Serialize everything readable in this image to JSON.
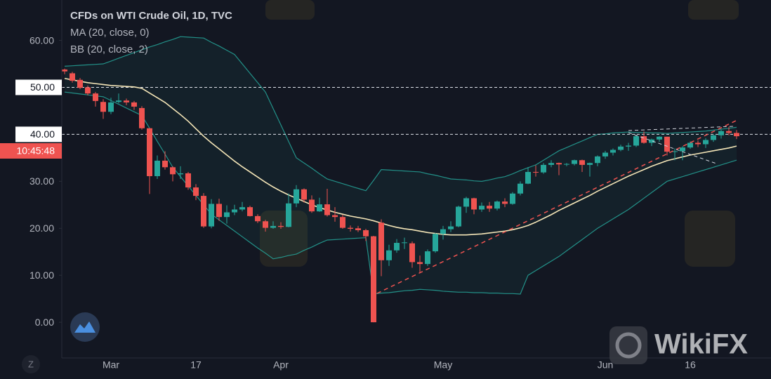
{
  "chart_data": {
    "type": "candlestick",
    "title": "CFDs on WTI Crude Oil, 1D, TVC",
    "up_color": "#26a69a",
    "down_color": "#ef5350",
    "categories": [
      null,
      null,
      null,
      null,
      null,
      null,
      "Mar",
      null,
      null,
      null,
      null,
      null,
      null,
      null,
      null,
      null,
      null,
      "17",
      null,
      null,
      null,
      null,
      null,
      null,
      null,
      null,
      null,
      null,
      "Apr",
      null,
      null,
      null,
      null,
      null,
      null,
      null,
      null,
      null,
      null,
      null,
      null,
      null,
      null,
      null,
      null,
      null,
      null,
      null,
      null,
      "May",
      null,
      null,
      null,
      null,
      null,
      null,
      null,
      null,
      null,
      null,
      null,
      null,
      null,
      null,
      null,
      null,
      null,
      null,
      null,
      null,
      "Jun",
      null,
      null,
      null,
      null,
      null,
      null,
      null,
      null,
      null,
      null,
      "16",
      null,
      null,
      null,
      null,
      null,
      null
    ],
    "open": [
      53.8,
      53.0,
      51.6,
      50.0,
      48.7,
      46.9,
      44.8,
      46.9,
      47.2,
      46.8,
      45.6,
      41.3,
      31.1,
      34.4,
      33.0,
      31.5,
      31.7,
      28.7,
      26.9,
      20.4,
      25.2,
      22.4,
      23.4,
      24.0,
      24.5,
      22.6,
      21.5,
      20.1,
      20.5,
      20.3,
      25.3,
      28.3,
      26.1,
      23.6,
      25.1,
      22.8,
      22.4,
      20.1,
      20.0,
      19.6,
      18.3,
      21.2,
      13.2,
      15.3,
      16.9,
      16.8,
      12.8,
      12.4,
      15.1,
      18.8,
      19.8,
      20.4,
      24.6,
      26.4,
      24.0,
      24.8,
      24.2,
      25.7,
      25.2,
      27.4,
      29.5,
      32.0,
      31.9,
      33.5,
      33.9,
      33.6,
      33.7,
      34.5,
      33.5,
      33.9,
      35.3,
      36.1,
      36.7,
      37.4,
      37.6,
      39.6,
      38.2,
      38.9,
      39.5,
      36.3,
      36.4,
      37.2,
      38.2,
      37.9,
      38.8,
      39.8,
      40.7,
      40.3
    ],
    "high": [
      54.0,
      53.3,
      52.0,
      50.4,
      49.0,
      47.5,
      47.8,
      48.7,
      47.6,
      47.1,
      46.0,
      41.3,
      35.5,
      36.4,
      33.2,
      33.2,
      32.0,
      29.4,
      27.5,
      26.2,
      26.3,
      24.9,
      25.0,
      25.6,
      24.8,
      23.0,
      21.8,
      21.5,
      21.3,
      27.4,
      29.2,
      28.5,
      27.0,
      26.5,
      28.4,
      24.5,
      22.9,
      20.6,
      20.5,
      19.9,
      18.4,
      21.9,
      16.5,
      17.7,
      18.0,
      17.2,
      14.2,
      15.5,
      19.0,
      20.5,
      21.5,
      24.8,
      26.7,
      26.5,
      25.5,
      25.6,
      25.9,
      26.4,
      27.7,
      30.0,
      33.0,
      33.4,
      33.9,
      34.5,
      34.0,
      33.9,
      34.6,
      34.6,
      34.0,
      35.5,
      36.5,
      37.0,
      37.8,
      38.2,
      39.9,
      40.6,
      39.1,
      39.6,
      39.5,
      37.0,
      37.5,
      38.5,
      38.7,
      39.2,
      40.0,
      41.0,
      41.6,
      40.9
    ],
    "low": [
      52.8,
      51.0,
      49.6,
      48.3,
      45.9,
      43.3,
      44.3,
      46.6,
      46.2,
      45.2,
      41.0,
      27.3,
      30.5,
      32.5,
      30.0,
      30.5,
      28.2,
      26.0,
      20.1,
      20.0,
      21.6,
      21.0,
      22.8,
      23.6,
      22.5,
      21.1,
      19.3,
      19.9,
      19.9,
      20.2,
      24.5,
      25.5,
      23.3,
      23.5,
      22.5,
      21.4,
      19.9,
      19.3,
      19.2,
      17.3,
      0.0,
      9.8,
      12.0,
      14.8,
      15.6,
      11.6,
      10.5,
      12.0,
      14.8,
      17.6,
      19.2,
      20.2,
      23.3,
      23.0,
      23.5,
      23.5,
      23.8,
      24.5,
      25.0,
      27.0,
      29.4,
      31.0,
      31.6,
      33.0,
      31.3,
      33.2,
      33.4,
      32.0,
      31.0,
      33.2,
      34.8,
      35.5,
      36.4,
      36.5,
      37.3,
      38.0,
      37.5,
      38.4,
      35.5,
      34.5,
      34.5,
      36.9,
      37.3,
      37.1,
      38.4,
      39.1,
      39.8,
      39.0
    ],
    "close": [
      53.4,
      51.4,
      49.9,
      48.7,
      47.1,
      44.8,
      46.8,
      47.2,
      46.8,
      45.9,
      41.3,
      31.1,
      34.4,
      33.0,
      31.5,
      31.7,
      28.7,
      26.9,
      20.4,
      25.2,
      22.4,
      23.4,
      24.0,
      24.5,
      22.6,
      21.5,
      20.1,
      20.5,
      20.3,
      25.3,
      28.3,
      26.1,
      23.6,
      25.1,
      22.8,
      22.4,
      20.1,
      19.9,
      19.6,
      18.3,
      0.0,
      13.2,
      15.3,
      16.9,
      17.0,
      12.8,
      12.4,
      15.1,
      18.8,
      19.8,
      20.4,
      24.6,
      26.4,
      24.0,
      24.8,
      24.2,
      25.7,
      25.2,
      27.4,
      29.5,
      32.0,
      31.9,
      33.5,
      33.9,
      33.6,
      33.7,
      34.5,
      33.5,
      33.9,
      35.3,
      36.1,
      36.7,
      37.4,
      37.6,
      39.6,
      38.2,
      38.9,
      39.5,
      36.3,
      36.4,
      37.2,
      38.2,
      37.9,
      38.8,
      39.8,
      40.7,
      40.3,
      39.6
    ],
    "indicators": [
      {
        "name": "MA (20, close, 0)",
        "color": "#f5e6b8",
        "values": [
          51.9,
          51.6,
          51.3,
          51.0,
          50.8,
          50.6,
          50.4,
          50.3,
          50.2,
          50.1,
          49.8,
          48.8,
          47.8,
          46.8,
          45.5,
          44.2,
          42.8,
          41.2,
          39.6,
          38.2,
          36.9,
          35.6,
          34.3,
          33.1,
          32.0,
          30.9,
          29.8,
          28.8,
          27.9,
          27.1,
          26.4,
          25.7,
          25.0,
          24.4,
          23.9,
          23.4,
          23.0,
          22.6,
          22.3,
          22.0,
          21.6,
          21.1,
          20.6,
          20.2,
          19.9,
          19.7,
          19.4,
          19.1,
          18.9,
          18.7,
          18.6,
          18.6,
          18.6,
          18.7,
          18.8,
          19.0,
          19.2,
          19.4,
          19.7,
          20.1,
          20.6,
          21.3,
          22.1,
          22.9,
          23.8,
          24.6,
          25.4,
          26.2,
          27.0,
          27.9,
          28.7,
          29.5,
          30.3,
          31.1,
          31.8,
          32.5,
          33.2,
          33.8,
          34.4,
          34.8,
          35.2,
          35.6,
          35.9,
          36.2,
          36.5,
          36.8,
          37.1,
          37.5
        ]
      },
      {
        "name": "BB (20, close, 2)",
        "color": "#26a69a",
        "upper": [
          54.5,
          54.6,
          54.7,
          54.8,
          54.9,
          55.0,
          55.6,
          56.2,
          56.8,
          57.4,
          58.0,
          58.6,
          59.1,
          59.7,
          60.2,
          60.8,
          60.7,
          60.6,
          60.5,
          59.6,
          58.8,
          57.9,
          57.0,
          55.0,
          53.0,
          51.0,
          49.0,
          45.5,
          42.0,
          38.5,
          35.0,
          33.9,
          32.8,
          31.6,
          30.5,
          30.0,
          29.5,
          29.0,
          28.5,
          28.0,
          30.2,
          32.5,
          32.4,
          32.3,
          32.2,
          32.1,
          32.0,
          31.6,
          31.3,
          30.9,
          30.5,
          30.4,
          30.3,
          30.1,
          30.0,
          30.3,
          30.7,
          31.0,
          31.6,
          32.3,
          32.9,
          33.5,
          34.5,
          35.5,
          36.5,
          37.2,
          37.9,
          38.6,
          39.3,
          40.0,
          40.1,
          40.3,
          40.4,
          40.5,
          40.4,
          40.4,
          40.3,
          40.3,
          40.2,
          40.3,
          40.4,
          40.5,
          40.6,
          40.7,
          40.9,
          41.1,
          41.3,
          41.5
        ],
        "lower": [
          49.0,
          48.8,
          48.6,
          48.4,
          48.2,
          48.0,
          47.2,
          46.4,
          45.6,
          44.8,
          44.0,
          41.3,
          38.5,
          35.8,
          33.0,
          31.0,
          29.0,
          27.0,
          25.0,
          23.0,
          21.8,
          20.6,
          19.4,
          18.2,
          17.0,
          15.8,
          14.7,
          13.5,
          13.8,
          14.2,
          14.5,
          15.3,
          16.0,
          16.8,
          17.5,
          17.6,
          17.7,
          17.8,
          17.9,
          18.0,
          6.0,
          6.2,
          6.3,
          6.5,
          6.7,
          6.8,
          7.0,
          6.9,
          6.8,
          6.6,
          6.5,
          6.4,
          6.4,
          6.3,
          6.3,
          6.2,
          6.2,
          6.1,
          6.1,
          6.0,
          10.0,
          11.0,
          12.0,
          13.0,
          14.0,
          15.2,
          16.4,
          17.6,
          18.8,
          20.0,
          21.0,
          22.0,
          23.0,
          24.0,
          25.2,
          26.4,
          27.6,
          28.8,
          30.0,
          30.5,
          31.0,
          31.5,
          32.0,
          32.5,
          33.0,
          33.5,
          34.0,
          34.5
        ]
      }
    ],
    "ylim": [
      -7.6,
      68.6
    ],
    "yticks": [
      {
        "value": 0,
        "label": "0.00"
      },
      {
        "value": 10,
        "label": "10.00"
      },
      {
        "value": 20,
        "label": "20.00"
      },
      {
        "value": 30,
        "label": "30.00"
      },
      {
        "value": 60,
        "label": "60.00"
      }
    ],
    "hlines": [
      {
        "value": 50,
        "label": "50.00"
      },
      {
        "value": 40,
        "label": "40.00"
      }
    ],
    "countdown": "10:45:48",
    "timezone_button": "Z",
    "watermark": "WikiFX"
  }
}
